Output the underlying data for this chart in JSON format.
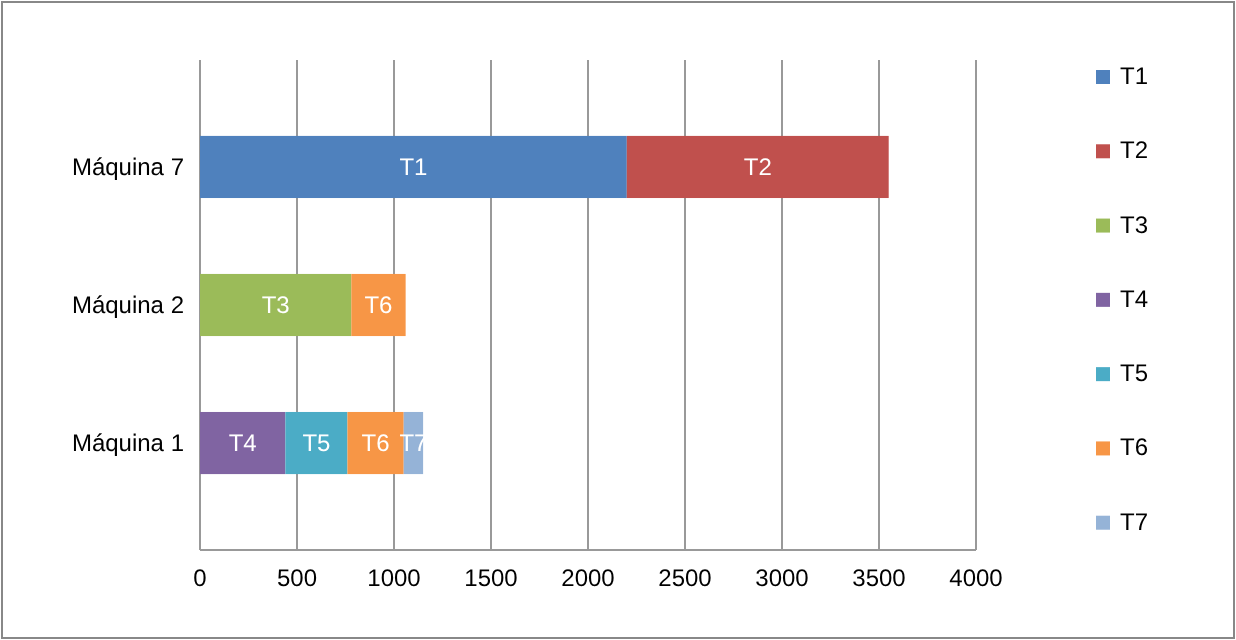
{
  "chart_data": {
    "type": "bar",
    "orientation": "horizontal",
    "stacked": true,
    "categories": [
      "Máquina 7",
      "Máquina 2",
      "Máquina 1"
    ],
    "xlim": [
      0,
      4000
    ],
    "xticks": [
      0,
      500,
      1000,
      1500,
      2000,
      2500,
      3000,
      3500,
      4000
    ],
    "grid": "x",
    "legend": "right",
    "series": [
      {
        "name": "T1",
        "color": "#4f81bd",
        "values": [
          2200,
          null,
          null
        ],
        "value_labels": [
          "T1",
          null,
          null
        ]
      },
      {
        "name": "T2",
        "color": "#c0504d",
        "values": [
          1350,
          null,
          null
        ],
        "value_labels": [
          "T2",
          null,
          null
        ]
      },
      {
        "name": "T3",
        "color": "#9bbb59",
        "values": [
          null,
          780,
          null
        ],
        "value_labels": [
          null,
          "T3",
          null
        ]
      },
      {
        "name": "T4",
        "color": "#8064a2",
        "values": [
          null,
          null,
          440
        ],
        "value_labels": [
          null,
          null,
          "T4"
        ]
      },
      {
        "name": "T5",
        "color": "#4bacc6",
        "values": [
          null,
          null,
          320
        ],
        "value_labels": [
          null,
          null,
          "T5"
        ]
      },
      {
        "name": "T6",
        "color": "#f79646",
        "values": [
          null,
          280,
          290
        ],
        "value_labels": [
          null,
          "T6",
          "T6"
        ]
      },
      {
        "name": "T7",
        "color": "#95b3d7",
        "values": [
          null,
          null,
          100
        ],
        "value_labels": [
          null,
          null,
          "T7"
        ]
      }
    ]
  }
}
